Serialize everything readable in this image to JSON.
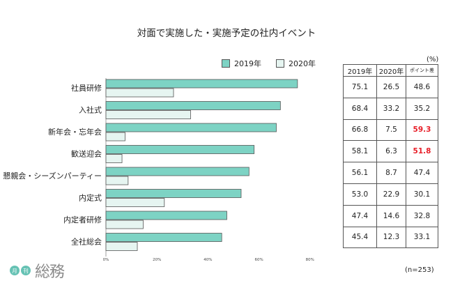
{
  "chart_data": {
    "type": "bar",
    "orientation": "horizontal",
    "title": "対面で実施した・実施予定の社内イベント",
    "categories": [
      "社員研修",
      "入社式",
      "新年会・忘年会",
      "歓送迎会",
      "懇親会・シーズンパーティー",
      "内定式",
      "内定者研修",
      "全社総会"
    ],
    "series": [
      {
        "name": "2019年",
        "values": [
          75.1,
          68.4,
          66.8,
          58.1,
          56.1,
          53.0,
          47.4,
          45.4
        ],
        "color": "#7dd3c4"
      },
      {
        "name": "2020年",
        "values": [
          26.5,
          33.2,
          7.5,
          6.3,
          8.7,
          22.9,
          14.6,
          12.3
        ],
        "color": "#e6f5f1"
      }
    ],
    "xlim": [
      0,
      80
    ],
    "xticks": [
      "0%",
      "20%",
      "40%",
      "60%",
      "80%"
    ],
    "xlabel": "",
    "ylabel": "",
    "legend": "top"
  },
  "table": {
    "unit": "(%)",
    "headers": [
      "2019年",
      "2020年",
      "ポイント差"
    ],
    "rows": [
      [
        "75.1",
        "26.5",
        "48.6"
      ],
      [
        "68.4",
        "33.2",
        "35.2"
      ],
      [
        "66.8",
        "7.5",
        "59.3"
      ],
      [
        "58.1",
        "6.3",
        "51.8"
      ],
      [
        "56.1",
        "8.7",
        "47.4"
      ],
      [
        "53.0",
        "22.9",
        "30.1"
      ],
      [
        "47.4",
        "14.6",
        "32.8"
      ],
      [
        "45.4",
        "12.3",
        "33.1"
      ]
    ],
    "highlight_color": "#e8202a"
  },
  "note": "(n=253)",
  "logo": {
    "badge1": "月",
    "badge2": "刊",
    "name": "総務"
  }
}
